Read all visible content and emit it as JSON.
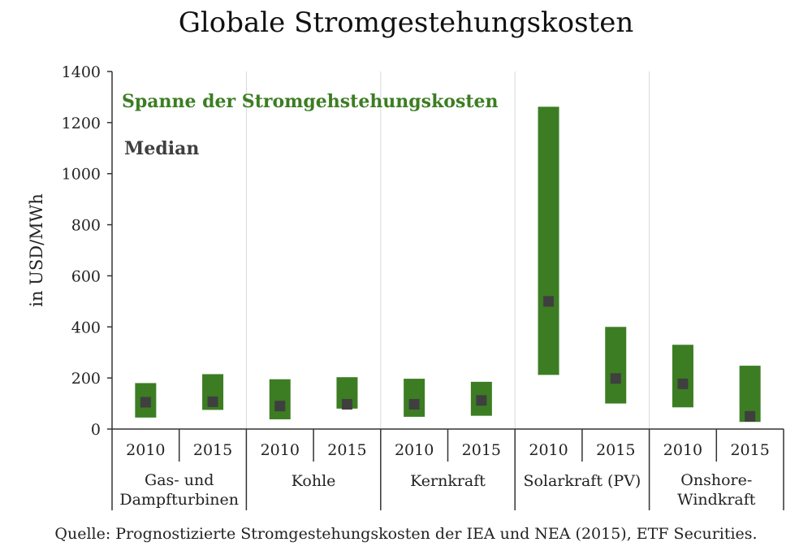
{
  "chart_data": {
    "type": "bar",
    "title": "Globale Stromgestehungskosten",
    "ylabel": "in USD/MWh",
    "ylim": [
      0,
      1400
    ],
    "yticks": [
      0,
      200,
      400,
      600,
      800,
      1000,
      1200,
      1400
    ],
    "legend": {
      "range_label": "Spanne der Stromgehstehungskosten",
      "median_label": "Median"
    },
    "groups": [
      {
        "label": "Gas- und Dampfturbinen",
        "lines": [
          "Gas- und",
          "Dampfturbinen"
        ]
      },
      {
        "label": "Kohle",
        "lines": [
          "Kohle"
        ]
      },
      {
        "label": "Kernkraft",
        "lines": [
          "Kernkraft"
        ]
      },
      {
        "label": "Solarkraft (PV)",
        "lines": [
          "Solarkraft (PV)"
        ]
      },
      {
        "label": "Onshore-Windkraft",
        "lines": [
          "Onshore-",
          "Windkraft"
        ]
      }
    ],
    "bars": [
      {
        "group": 0,
        "year": "2010",
        "low": 45,
        "high": 180,
        "median": 105
      },
      {
        "group": 0,
        "year": "2015",
        "low": 75,
        "high": 215,
        "median": 107
      },
      {
        "group": 1,
        "year": "2010",
        "low": 38,
        "high": 195,
        "median": 90
      },
      {
        "group": 1,
        "year": "2015",
        "low": 80,
        "high": 203,
        "median": 97
      },
      {
        "group": 2,
        "year": "2010",
        "low": 48,
        "high": 197,
        "median": 97
      },
      {
        "group": 2,
        "year": "2015",
        "low": 52,
        "high": 185,
        "median": 112
      },
      {
        "group": 3,
        "year": "2010",
        "low": 212,
        "high": 1262,
        "median": 500
      },
      {
        "group": 3,
        "year": "2015",
        "low": 100,
        "high": 400,
        "median": 198
      },
      {
        "group": 4,
        "year": "2010",
        "low": 85,
        "high": 330,
        "median": 177
      },
      {
        "group": 4,
        "year": "2015",
        "low": 28,
        "high": 248,
        "median": 50
      }
    ],
    "colors": {
      "range": "#3c7d23",
      "median": "#3f3f3f",
      "grid": "#d9d9d9",
      "axis": "#333333"
    },
    "grid": "vertical separators"
  },
  "source": "Quelle: Prognostizierte Stromgestehungskosten der IEA und NEA (2015), ETF Securities."
}
